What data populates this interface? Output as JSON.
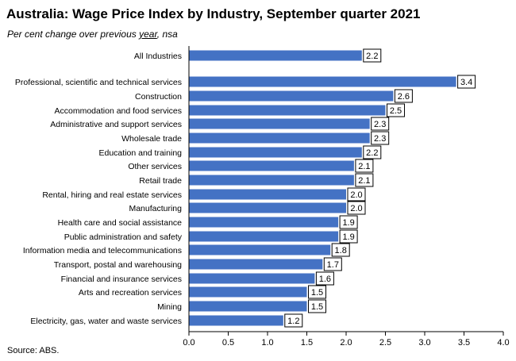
{
  "header": {
    "title": "Australia:  Wage Price Index by Industry, September quarter 2021",
    "subtitle_before": "Per cent change over previous ",
    "subtitle_emph": "year",
    "subtitle_after": ", nsa"
  },
  "footer": {
    "source": "Source: ABS."
  },
  "colors": {
    "bar": "#4472C4",
    "axis": "#000000"
  },
  "chart_data": {
    "type": "bar",
    "orientation": "horizontal",
    "title": "Australia:  Wage Price Index by Industry, September quarter 2021",
    "subtitle": "Per cent change over previous year, nsa",
    "categories": [
      "All Industries",
      "Professional, scientific and technical services",
      "Construction",
      "Accommodation and food services",
      "Administrative and support services",
      "Wholesale trade",
      "Education and training",
      "Other services",
      "Retail trade",
      "Rental, hiring and real estate services",
      "Manufacturing",
      "Health care and social assistance",
      "Public administration and safety",
      "Information media and telecommunications",
      "Transport, postal and warehousing",
      "Financial and insurance services",
      "Arts and recreation services",
      "Mining",
      "Electricity, gas, water and waste services"
    ],
    "values": [
      2.2,
      3.4,
      2.6,
      2.5,
      2.3,
      2.3,
      2.2,
      2.1,
      2.1,
      2.0,
      2.0,
      1.9,
      1.9,
      1.8,
      1.7,
      1.6,
      1.5,
      1.5,
      1.2
    ],
    "value_labels": [
      "2.2",
      "3.4",
      "2.6",
      "2.5",
      "2.3",
      "2.3",
      "2.2",
      "2.1",
      "2.1",
      "2.0",
      "2.0",
      "1.9",
      "1.9",
      "1.8",
      "1.7",
      "1.6",
      "1.5",
      "1.5",
      "1.2"
    ],
    "xlim": [
      0,
      4.0
    ],
    "xticks": [
      "0.0",
      "0.5",
      "1.0",
      "1.5",
      "2.0",
      "2.5",
      "3.0",
      "3.5",
      "4.0"
    ],
    "grid": false,
    "legend": "none"
  }
}
